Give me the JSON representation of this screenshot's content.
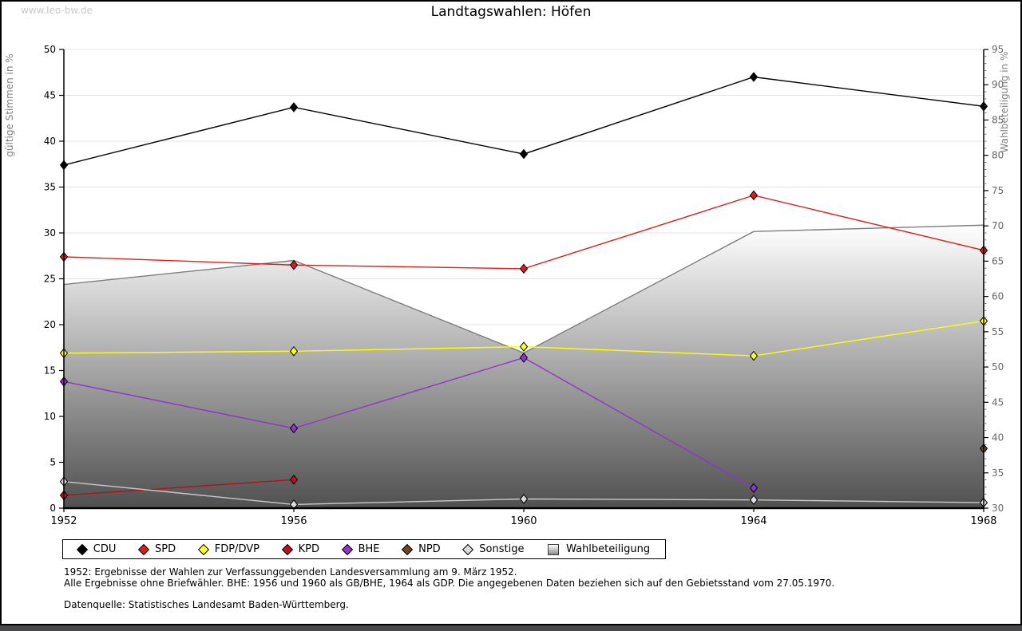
{
  "page": {
    "watermark": "www.leo-bw.de",
    "title": "Landtagswahlen: Höfen",
    "footnote1": "1952: Ergebnisse der Wahlen zur Verfassunggebenden Landesversammlung am 9. März 1952.",
    "footnote2": "Alle Ergebnisse ohne Briefwähler. BHE: 1956 und 1960 als GB/BHE, 1964 als GDP. Die angegebenen Daten beziehen sich auf den Gebietsstand vom 27.05.1970.",
    "source": "Datenquelle: Statistisches Landesamt Baden-Württemberg."
  },
  "chart_data": {
    "type": "line",
    "title": "Landtagswahlen: Höfen",
    "x": [
      1952,
      1956,
      1960,
      1964,
      1968
    ],
    "left_axis": {
      "label": "gültige Stimmen in %",
      "min": 0,
      "max": 50,
      "tick_step": 5
    },
    "right_axis": {
      "label": "Wahlbeteiligung in %",
      "min": 30,
      "max": 95,
      "tick_step": 5,
      "minor_step": 1
    },
    "grid": true,
    "legend_position": "bottom",
    "series": [
      {
        "name": "Wahlbeteiligung",
        "axis": "right",
        "style": "area",
        "outline_color": "#7d7d7d",
        "gradient": [
          "#ffffff",
          "#505050"
        ],
        "values": [
          61.7,
          65.1,
          52.0,
          69.2,
          70.1
        ]
      },
      {
        "name": "CDU",
        "axis": "left",
        "style": "line",
        "color": "#000000",
        "marker_fill": "#000000",
        "values": [
          37.4,
          43.7,
          38.6,
          47.0,
          43.8
        ]
      },
      {
        "name": "SPD",
        "axis": "left",
        "style": "line",
        "color": "#dc1f1f",
        "marker_fill": "#d7201d",
        "values": [
          27.4,
          26.5,
          26.1,
          34.1,
          28.1
        ]
      },
      {
        "name": "FDP/DVP",
        "axis": "left",
        "style": "line",
        "color": "#ffff00",
        "marker_fill": "#ffff26",
        "values": [
          16.9,
          17.1,
          17.6,
          16.6,
          20.4
        ]
      },
      {
        "name": "KPD",
        "axis": "left",
        "style": "line",
        "color": "#b01217",
        "marker_fill": "#c01020",
        "values": [
          1.4,
          3.1,
          null,
          null,
          null
        ]
      },
      {
        "name": "BHE",
        "axis": "left",
        "style": "line",
        "color": "#9233cc",
        "marker_fill": "#9233cc",
        "values": [
          13.8,
          8.7,
          16.4,
          2.2,
          null
        ]
      },
      {
        "name": "NPD",
        "axis": "left",
        "style": "line",
        "color": "#6e4826",
        "marker_fill": "#6e4826",
        "values": [
          null,
          null,
          null,
          null,
          6.5
        ]
      },
      {
        "name": "Sonstige",
        "axis": "left",
        "style": "line",
        "color": "#c9c9c9",
        "marker_fill": "#dcdcdc",
        "values": [
          2.9,
          0.4,
          1.0,
          0.9,
          0.6
        ]
      }
    ],
    "colors": {
      "grid": "#e4e4e4",
      "axis": "#000000",
      "left_tick_label": "#000000",
      "right_tick_label": "#666666",
      "axis_title": "#808080"
    }
  }
}
